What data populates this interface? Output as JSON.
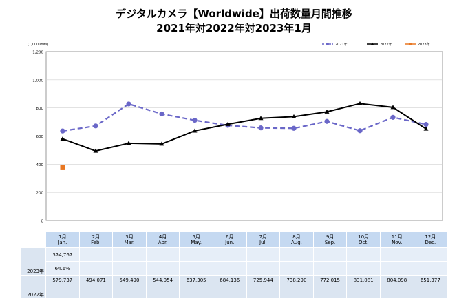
{
  "title_line1": "デジタルカメラ【Worldwide】出荷数量月間推移",
  "title_line2": "2021年対2022年対2023年1月",
  "chart_data": {
    "type": "line",
    "unit_label": "(1,000units)",
    "ylim": [
      0,
      1200
    ],
    "yticks": [
      "0",
      "200",
      "400",
      "600",
      "800",
      "1,000",
      "1,200"
    ],
    "ytick_values": [
      0,
      200,
      400,
      600,
      800,
      1000,
      1200
    ],
    "grid": true,
    "legend_position": "top-right",
    "categories_ja": [
      "1月",
      "2月",
      "3月",
      "4月",
      "5月",
      "6月",
      "7月",
      "8月",
      "9月",
      "10月",
      "11月",
      "12月"
    ],
    "categories_en": [
      "Jan.",
      "Feb.",
      "Mar.",
      "Apr.",
      "May.",
      "Jun.",
      "Jul.",
      "Aug.",
      "Sep.",
      "Oct.",
      "Nov.",
      "Dec."
    ],
    "series": [
      {
        "name": "2021年",
        "color": "#6a67c8",
        "style": "dashed-circle",
        "values": [
          636,
          672,
          828,
          757,
          712,
          676,
          658,
          655,
          704,
          638,
          733,
          683
        ]
      },
      {
        "name": "2022年",
        "color": "#000000",
        "style": "solid-triangle",
        "values": [
          580,
          494,
          549,
          544,
          637,
          684,
          726,
          738,
          772,
          831,
          804,
          651
        ]
      },
      {
        "name": "2023年",
        "color": "#e87722",
        "style": "square",
        "values": [
          375
        ]
      }
    ]
  },
  "table": {
    "row_2023_label": "2023年",
    "row_2022_label": "2022年",
    "row_2023_values": [
      "374,767",
      "",
      "",
      "",
      "",
      "",
      "",
      "",
      "",
      "",
      "",
      ""
    ],
    "row_2023_ratio": [
      "64.6%",
      "",
      "",
      "",
      "",
      "",
      "",
      "",
      "",
      "",
      "",
      ""
    ],
    "row_2022_values": [
      "579,737",
      "494,071",
      "549,490",
      "544,054",
      "637,305",
      "684,136",
      "725,944",
      "738,290",
      "772,015",
      "831,081",
      "804,098",
      "651,377"
    ]
  }
}
